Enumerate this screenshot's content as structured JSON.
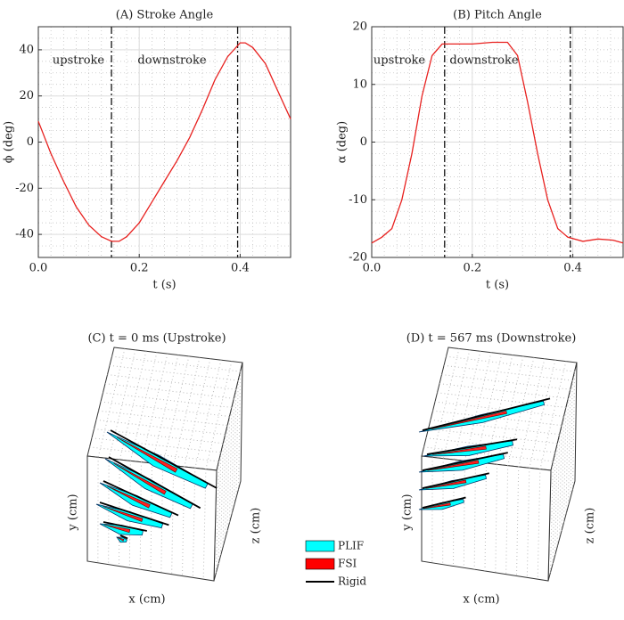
{
  "chart_data": [
    {
      "type": "line",
      "title": "(A) Stroke Angle",
      "xlabel": "t (s)",
      "ylabel": "ϕ (deg)",
      "xlim": [
        0,
        0.5
      ],
      "ylim": [
        -50,
        50
      ],
      "xticks": [
        {
          "value": 0,
          "label": "0.0"
        },
        0.2,
        0.4
      ],
      "yticks": [
        -40,
        -20,
        0,
        20,
        40
      ],
      "grid": true,
      "minor_grid": true,
      "x": [
        0,
        0.025,
        0.05,
        0.075,
        0.1,
        0.125,
        0.145,
        0.16,
        0.175,
        0.2,
        0.225,
        0.25,
        0.275,
        0.3,
        0.325,
        0.35,
        0.375,
        0.4,
        0.41,
        0.425,
        0.45,
        0.475,
        0.5
      ],
      "series": [
        {
          "color": "#e8211f",
          "values": [
            9,
            -5,
            -17,
            -28,
            -36,
            -41,
            -43,
            -43,
            -41,
            -35,
            -26,
            -17,
            -8,
            2,
            14,
            27,
            37,
            43,
            43,
            41,
            34,
            22,
            10
          ]
        }
      ],
      "vlines": [
        0.145,
        0.395
      ],
      "annotations": [
        "upstroke",
        "downstroke"
      ]
    },
    {
      "type": "line",
      "title": "(B) Pitch Angle",
      "xlabel": "t (s)",
      "ylabel": "α (deg)",
      "xlim": [
        0,
        0.5
      ],
      "ylim": [
        -20,
        20
      ],
      "xticks": [
        {
          "value": 0,
          "label": "0.0"
        },
        0.2,
        0.4
      ],
      "yticks": [
        -20,
        -10,
        0,
        10,
        20
      ],
      "grid": true,
      "minor_grid": true,
      "x": [
        0,
        0.02,
        0.04,
        0.06,
        0.08,
        0.1,
        0.12,
        0.14,
        0.16,
        0.2,
        0.24,
        0.27,
        0.29,
        0.31,
        0.33,
        0.35,
        0.37,
        0.39,
        0.42,
        0.45,
        0.48,
        0.5
      ],
      "series": [
        {
          "color": "#e8211f",
          "values": [
            -17.5,
            -16.5,
            -15,
            -10,
            -2,
            8,
            15,
            17,
            17,
            17,
            17.3,
            17.3,
            15,
            7,
            -2,
            -10,
            -15,
            -16.5,
            -17.2,
            -16.8,
            -17,
            -17.5
          ]
        }
      ],
      "vlines": [
        0.145,
        0.395
      ],
      "annotations": [
        "upstroke",
        "downstroke"
      ]
    },
    {
      "type": "3d",
      "title": "(C) t = 0 ms (Upstroke)",
      "xlabel": "x (cm)",
      "ylabel": "y (cm)",
      "zlabel": "z (cm)",
      "legend": [
        {
          "name": "PLIF",
          "color": "#00ffff"
        },
        {
          "name": "FSI",
          "color": "#ff0000"
        },
        {
          "name": "Rigid",
          "color": "#000000"
        }
      ]
    },
    {
      "type": "3d",
      "title": "(D) t = 567 ms (Downstroke)",
      "xlabel": "x (cm)",
      "ylabel": "y (cm)",
      "zlabel": "z (cm)"
    }
  ]
}
